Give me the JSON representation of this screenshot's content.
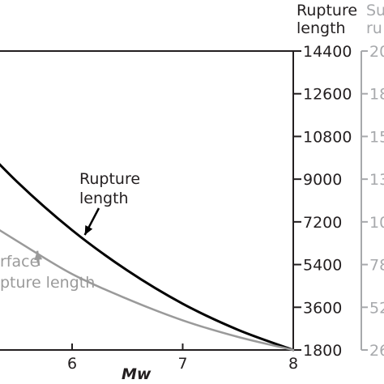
{
  "chart_data": {
    "type": "line",
    "xlabel": "Mw",
    "xticks": [
      "6",
      "7",
      "8"
    ],
    "xlim": [
      4.8,
      8
    ],
    "axes": {
      "rupture_length": {
        "label_line1": "Rupture",
        "label_line2": "length",
        "ticks": [
          "14400",
          "12600",
          "10800",
          "9000",
          "7200",
          "5400",
          "3600",
          "1800"
        ],
        "ylim": [
          1800,
          14400
        ]
      },
      "surface_rupture_length": {
        "label_line1": "Su",
        "label_line2": "ru",
        "ticks": [
          "20",
          "18",
          "15",
          "13",
          "10",
          "78",
          "52",
          "26"
        ]
      }
    },
    "series": [
      {
        "name_line1": "Rupture",
        "name_line2": "length",
        "color": "#000000",
        "x": [
          5.0,
          5.5,
          6.0,
          6.5,
          7.0,
          7.5,
          8.0
        ],
        "y": [
          11300,
          8900,
          6850,
          5150,
          3750,
          2650,
          1800
        ]
      },
      {
        "name_line1": "rface",
        "name_line2": "pture length",
        "color": "#9a9a9a",
        "x": [
          5.0,
          5.5,
          6.0,
          6.5,
          7.0,
          7.5,
          8.0
        ],
        "y": [
          7850,
          6400,
          5000,
          3950,
          3050,
          2350,
          1800
        ]
      }
    ],
    "annotations": [
      {
        "series": 0,
        "line1": "Rupture",
        "line2": "length",
        "arrow_to_x": 6.1
      },
      {
        "series": 1,
        "line1": "rface",
        "line2": "pture length",
        "arrow_to_x": 5.7
      }
    ]
  },
  "colors": {
    "axis": "#231f20",
    "grey_axis": "#a7a9ac"
  }
}
